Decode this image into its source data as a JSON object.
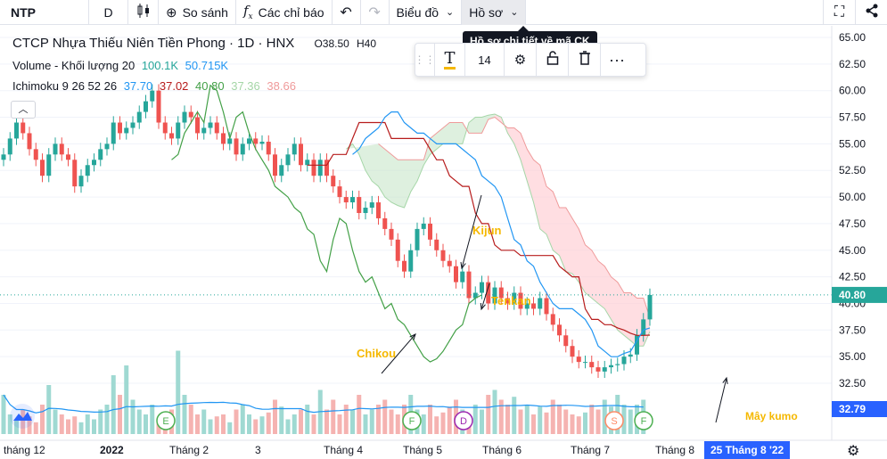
{
  "toolbar": {
    "symbol": "NTP",
    "interval": "D",
    "compare": "So sánh",
    "indicators": "Các chỉ báo",
    "chart_menu": "Biểu đồ",
    "profile_menu": "Hồ sơ"
  },
  "tooltip": "Hồ sơ chi tiết về mã CK",
  "drawing_toolbar": {
    "font_size": "14"
  },
  "legend": {
    "title": "CTCP Nhựa Thiếu Niên Tiền Phong · 1D · HNX",
    "ohlc_prefix": "O38.50",
    "ohlc_partial": "H40",
    "volume_label": "Volume - Khối lượng 20",
    "volume_value": "100.1K",
    "volume_ma": "50.715K",
    "ichimoku_label": "Ichimoku 9 26 52 26",
    "ichi_tenkan": "37.70",
    "ichi_kijun": "37.02",
    "ichi_chikou": "40.80",
    "ichi_spanA": "37.36",
    "ichi_spanB": "38.66"
  },
  "colors": {
    "up": "#26a69a",
    "down": "#ef5350",
    "tenkan": "#2196f3",
    "kijun": "#b71c1c",
    "chikou": "#43a047",
    "cloud_bull": "#c8e6c9",
    "cloud_bear": "#ffcdd2",
    "annotation": "#f5b800",
    "price_label": "#26a69a",
    "date_label": "#2962ff"
  },
  "chart_data": {
    "type": "candlestick",
    "y_ticks": [
      "65.00",
      "62.50",
      "60.00",
      "57.50",
      "55.00",
      "52.50",
      "50.00",
      "47.50",
      "45.00",
      "42.50",
      "40.00",
      "37.50",
      "35.00",
      "32.50"
    ],
    "ylim": [
      32.5,
      65.0
    ],
    "x_ticks": [
      "tháng 12",
      "2022",
      "Tháng 2",
      "3",
      "Tháng 4",
      "Tháng 5",
      "Tháng 6",
      "Tháng 7",
      "Tháng 8"
    ],
    "last_price": "40.80",
    "volume_ma_label": "32.79",
    "crosshair_date": "25 Tháng 8 '22",
    "annotations": [
      "Kijun",
      "Tenkan",
      "Chikou",
      "Mây kumo"
    ],
    "event_markers": [
      "E",
      "F",
      "D",
      "S",
      "F"
    ],
    "price_path": [
      54,
      55.5,
      57,
      56,
      54.5,
      53.5,
      52,
      54,
      55,
      54,
      53.5,
      51,
      52,
      53,
      53.5,
      54.5,
      55,
      57,
      56,
      56.5,
      57,
      58,
      59,
      60,
      57,
      56,
      55.5,
      57,
      58,
      57.5,
      56,
      56.5,
      57,
      56,
      55,
      55.5,
      54,
      55,
      55.5,
      55,
      55.2,
      54,
      52,
      53,
      54,
      55,
      53,
      53.5,
      52,
      53.5,
      52,
      51,
      50,
      49.5,
      50,
      48.5,
      49,
      49.5,
      48,
      47,
      46,
      44,
      43,
      45,
      47,
      47.5,
      46,
      45,
      44,
      43.5,
      42,
      43,
      40.5,
      41,
      42,
      40,
      41.5,
      40.5,
      40,
      41,
      39.5,
      40,
      39.5,
      40.5,
      39,
      38,
      37,
      36,
      35,
      34.5,
      34.5,
      34,
      33.6,
      34,
      34.2,
      34.3,
      35,
      35.2,
      37,
      38.5,
      40.8
    ],
    "kijun_path": [
      53,
      53,
      53,
      53,
      54,
      54,
      54,
      55.5,
      57,
      57,
      57,
      57,
      57,
      55.5,
      55.5,
      55.5,
      55.5,
      55.5,
      55.5,
      54.5,
      53.5,
      53.5,
      52,
      51.5,
      51,
      51,
      48.5,
      47.5,
      47.5,
      45.5,
      45,
      45,
      45,
      44.5,
      44.5,
      44.5,
      44.5,
      44.5,
      44.5,
      43.5,
      43,
      42.5,
      42.5,
      39.5,
      38.5,
      38.5,
      38,
      38,
      37.7,
      37.5,
      37.2,
      37,
      37,
      37.02
    ],
    "tenkan_path": [
      54,
      54.5,
      55.5,
      56,
      56.5,
      57.5,
      58,
      58,
      57,
      56.5,
      56,
      56,
      55.5,
      55,
      55,
      55,
      55,
      54.5,
      54,
      53.5,
      52,
      51.5,
      51,
      50,
      48,
      46,
      45.5,
      44,
      43.5,
      42,
      41,
      40,
      39.5,
      39.5,
      39.5,
      39,
      38.5,
      37.5,
      36,
      35.5,
      35,
      35,
      35.3,
      35.5,
      36.5,
      37.5,
      37.7
    ],
    "chikou_path": [
      53.5,
      54,
      56,
      57,
      58,
      57,
      60.5,
      60,
      58,
      55.5,
      57.5,
      58,
      56,
      54.5,
      53.5,
      52.5,
      51,
      50.5,
      50,
      49,
      48.5,
      47,
      46.5,
      44,
      43,
      46,
      48,
      47.5,
      45,
      43,
      42,
      42.5,
      41,
      39.5,
      40,
      38.5,
      38,
      37,
      36,
      35,
      34.5,
      34.8,
      35.5,
      36.5,
      37.5,
      38,
      40,
      40.5,
      40.8
    ],
    "span_a_path": [
      54.5,
      55,
      54,
      52.5,
      51.5,
      51,
      50,
      49.5,
      49.2,
      49,
      50.5,
      51.5,
      53,
      54,
      54.5,
      55,
      55,
      55,
      55,
      57,
      57.5,
      57.5,
      57.7,
      57.8,
      57.5,
      56,
      55,
      53.5,
      51.5,
      49.5,
      47,
      46.5,
      45,
      44.5,
      43,
      42.8,
      42,
      41,
      40.5,
      40,
      39.5,
      38.5,
      37.5,
      37,
      36.5,
      36,
      36,
      37.36
    ],
    "span_b_path": [
      55,
      54.5,
      54,
      53.5,
      53.5,
      53.5,
      53.5,
      53.5,
      55.5,
      56,
      56.5,
      57,
      57,
      57,
      56,
      56,
      56,
      57.3,
      57.5,
      57,
      56.5,
      56.5,
      56,
      54.5,
      53.5,
      53,
      51,
      50.5,
      49,
      49,
      48,
      47,
      45.5,
      45,
      44,
      43.5,
      42.5,
      42,
      41,
      41,
      40.5,
      40.5,
      38.66
    ],
    "volume_bars": [
      40,
      20,
      15,
      25,
      18,
      12,
      30,
      50,
      25,
      20,
      15,
      18,
      12,
      20,
      15,
      25,
      30,
      60,
      40,
      70,
      35,
      25,
      20,
      30,
      15,
      20,
      25,
      85,
      40,
      30,
      20,
      25,
      15,
      18,
      20,
      12,
      25,
      30,
      20,
      15,
      18,
      22,
      35,
      28,
      15,
      20,
      25,
      30,
      20,
      45,
      25,
      35,
      20,
      30,
      25,
      40,
      20,
      25,
      30,
      35,
      25,
      20,
      30,
      40,
      25,
      20,
      30,
      18,
      22,
      28,
      35,
      25,
      20,
      30,
      25,
      40,
      45,
      35,
      30,
      38,
      25,
      30,
      20,
      28,
      22,
      35,
      30,
      25,
      20,
      18,
      22,
      30,
      25,
      35,
      28,
      40,
      30,
      25,
      30,
      35
    ]
  }
}
